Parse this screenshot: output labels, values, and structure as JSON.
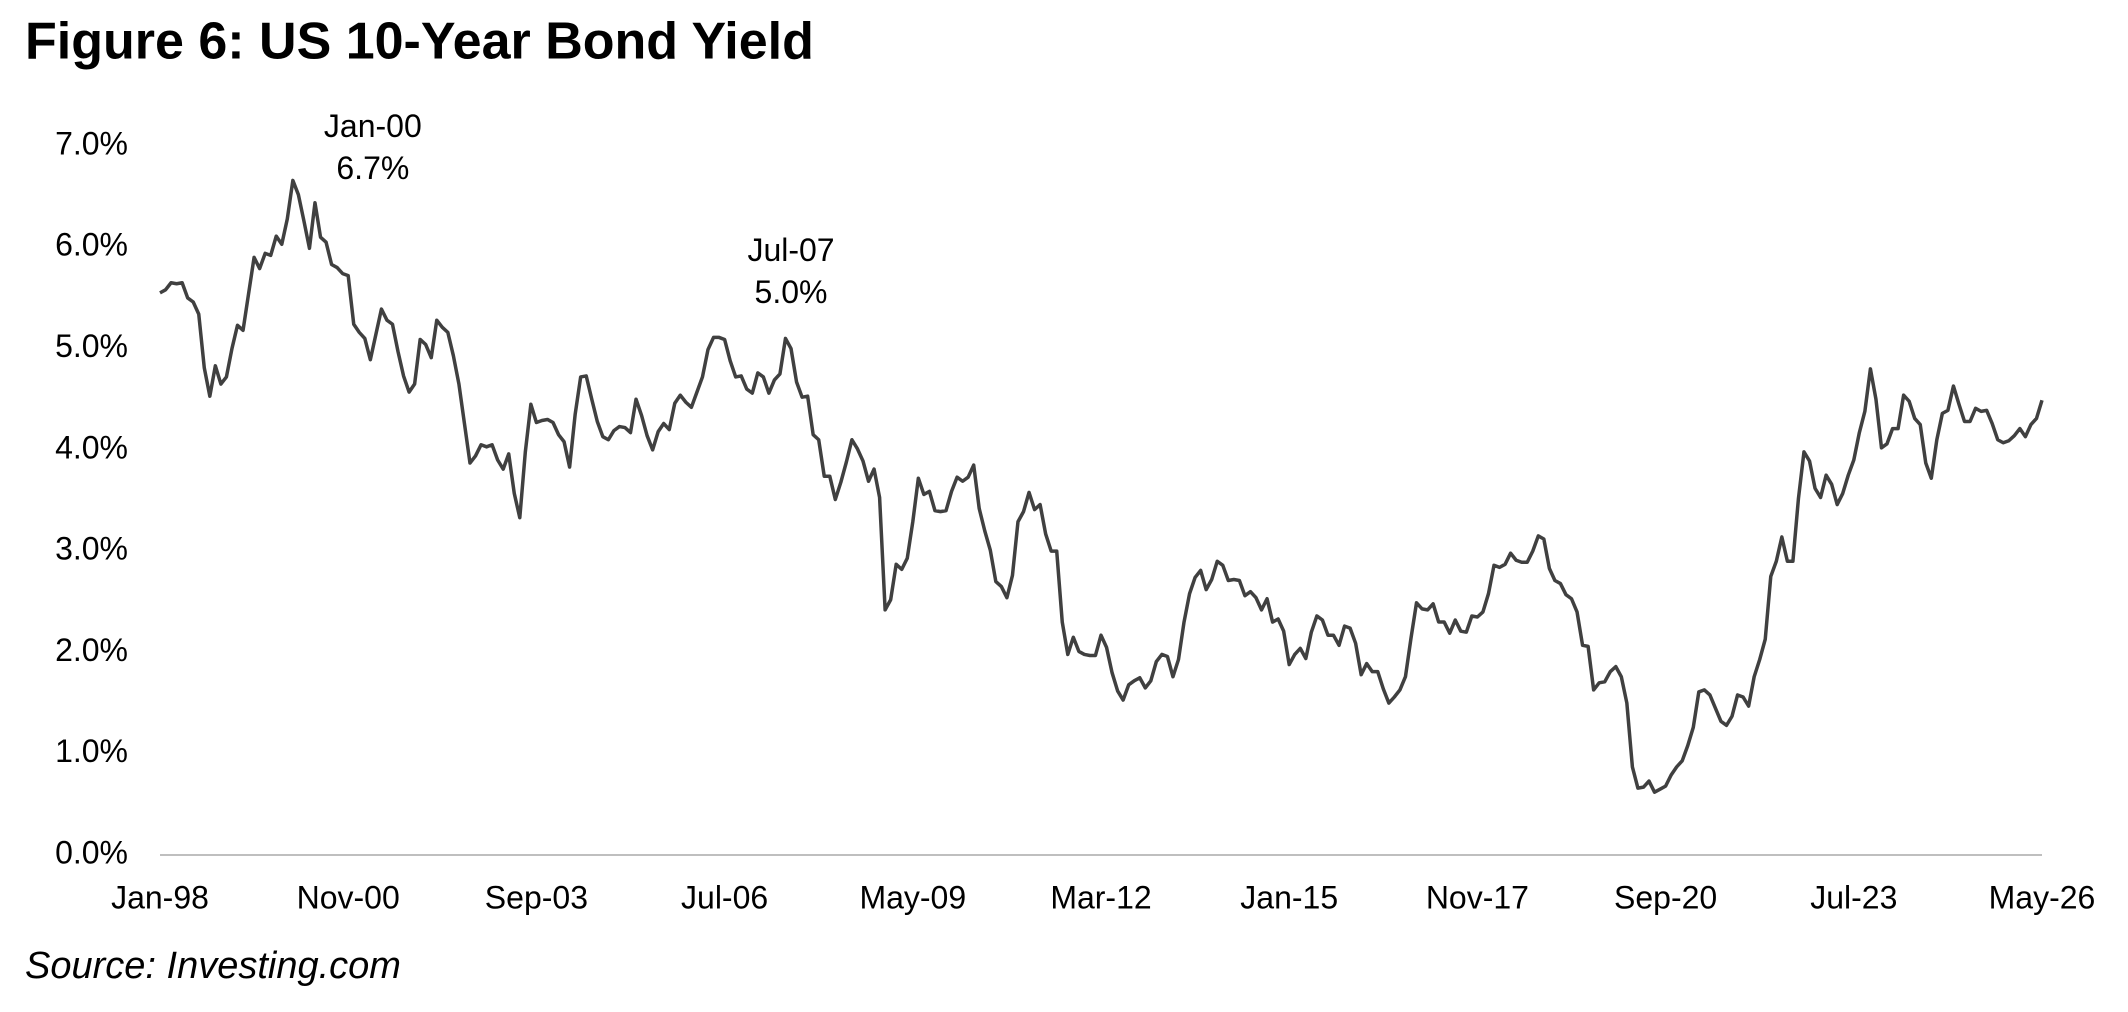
{
  "chart_data": {
    "type": "line",
    "title": "Figure 6: US 10-Year Bond Yield",
    "source": "Source: Investing.com",
    "categories": [
      "Jan-98",
      null,
      null,
      null,
      null,
      null,
      null,
      null,
      null,
      null,
      null,
      null,
      null,
      null,
      null,
      null,
      null,
      null,
      null,
      null,
      null,
      null,
      null,
      null,
      null,
      null,
      null,
      null,
      null,
      null,
      null,
      null,
      null,
      null,
      "Nov-00",
      null,
      null,
      null,
      null,
      null,
      null,
      null,
      null,
      null,
      null,
      null,
      null,
      null,
      null,
      null,
      null,
      null,
      null,
      null,
      null,
      null,
      null,
      null,
      null,
      null,
      null,
      null,
      null,
      null,
      null,
      null,
      null,
      null,
      "Sep-03",
      null,
      null,
      null,
      null,
      null,
      null,
      null,
      null,
      null,
      null,
      null,
      null,
      null,
      null,
      null,
      null,
      null,
      null,
      null,
      null,
      null,
      null,
      null,
      null,
      null,
      null,
      null,
      null,
      null,
      null,
      null,
      null,
      null,
      "Jul-06",
      null,
      null,
      null,
      null,
      null,
      null,
      null,
      null,
      null,
      null,
      null,
      null,
      null,
      null,
      null,
      null,
      null,
      null,
      null,
      null,
      null,
      null,
      null,
      null,
      null,
      null,
      null,
      null,
      null,
      null,
      null,
      null,
      null,
      "May-09",
      null,
      null,
      null,
      null,
      null,
      null,
      null,
      null,
      null,
      null,
      null,
      null,
      null,
      null,
      null,
      null,
      null,
      null,
      null,
      null,
      null,
      null,
      null,
      null,
      null,
      null,
      null,
      null,
      null,
      null,
      null,
      null,
      null,
      "Mar-12",
      null,
      null,
      null,
      null,
      null,
      null,
      null,
      null,
      null,
      null,
      null,
      null,
      null,
      null,
      null,
      null,
      null,
      null,
      null,
      null,
      null,
      null,
      null,
      null,
      null,
      null,
      null,
      null,
      null,
      null,
      null,
      null,
      null,
      "Jan-15",
      null,
      null,
      null,
      null,
      null,
      null,
      null,
      null,
      null,
      null,
      null,
      null,
      null,
      null,
      null,
      null,
      null,
      null,
      null,
      null,
      null,
      null,
      null,
      null,
      null,
      null,
      null,
      null,
      null,
      null,
      null,
      null,
      null,
      "Nov-17",
      null,
      null,
      null,
      null,
      null,
      null,
      null,
      null,
      null,
      null,
      null,
      null,
      null,
      null,
      null,
      null,
      null,
      null,
      null,
      null,
      null,
      null,
      null,
      null,
      null,
      null,
      null,
      null,
      null,
      null,
      null,
      null,
      null,
      "Sep-20",
      null,
      null,
      null,
      null,
      null,
      null,
      null,
      null,
      null,
      null,
      null,
      null,
      null,
      null,
      null,
      null,
      null,
      null,
      null,
      null,
      null,
      null,
      null,
      null,
      null,
      null,
      null,
      null,
      null,
      null,
      null,
      null,
      null,
      "Jul-23",
      null,
      null,
      null,
      null,
      null,
      null,
      null,
      null,
      null,
      null,
      null,
      null,
      null,
      null,
      null,
      null,
      null,
      null,
      null,
      null,
      null,
      null,
      null,
      null,
      null,
      null,
      null,
      null,
      null,
      null,
      null,
      null,
      null,
      "May-26"
    ],
    "series": [
      {
        "name": "US 10-Year Bond Yield",
        "color": "#404040",
        "values": [
          5.55,
          5.58,
          5.65,
          5.64,
          5.65,
          5.5,
          5.46,
          5.34,
          4.81,
          4.53,
          4.83,
          4.65,
          4.72,
          5.0,
          5.23,
          5.18,
          5.54,
          5.9,
          5.79,
          5.94,
          5.92,
          6.11,
          6.03,
          6.28,
          6.66,
          6.52,
          6.26,
          5.99,
          6.44,
          6.1,
          6.05,
          5.83,
          5.8,
          5.74,
          5.72,
          5.24,
          5.16,
          5.1,
          4.89,
          5.14,
          5.39,
          5.28,
          5.24,
          4.97,
          4.73,
          4.57,
          4.65,
          5.09,
          5.04,
          4.91,
          5.28,
          5.21,
          5.16,
          4.93,
          4.65,
          4.26,
          3.87,
          3.94,
          4.05,
          4.03,
          4.05,
          3.9,
          3.81,
          3.96,
          3.57,
          3.33,
          3.98,
          4.45,
          4.27,
          4.29,
          4.3,
          4.27,
          4.15,
          4.08,
          3.83,
          4.35,
          4.72,
          4.73,
          4.5,
          4.28,
          4.13,
          4.1,
          4.19,
          4.23,
          4.22,
          4.17,
          4.5,
          4.34,
          4.14,
          4.0,
          4.18,
          4.26,
          4.2,
          4.46,
          4.54,
          4.47,
          4.42,
          4.57,
          4.72,
          4.99,
          5.11,
          5.11,
          5.09,
          4.88,
          4.72,
          4.73,
          4.6,
          4.56,
          4.76,
          4.72,
          4.56,
          4.69,
          4.75,
          5.1,
          5.0,
          4.67,
          4.52,
          4.53,
          4.15,
          4.1,
          3.74,
          3.74,
          3.51,
          3.68,
          3.88,
          4.1,
          4.01,
          3.89,
          3.69,
          3.81,
          3.53,
          2.42,
          2.52,
          2.87,
          2.82,
          2.93,
          3.29,
          3.72,
          3.56,
          3.59,
          3.4,
          3.39,
          3.4,
          3.59,
          3.73,
          3.69,
          3.73,
          3.85,
          3.42,
          3.2,
          3.01,
          2.7,
          2.65,
          2.54,
          2.76,
          3.29,
          3.39,
          3.58,
          3.41,
          3.46,
          3.17,
          3.0,
          3.0,
          2.3,
          1.98,
          2.15,
          2.01,
          1.98,
          1.97,
          1.97,
          2.17,
          2.05,
          1.8,
          1.62,
          1.53,
          1.68,
          1.72,
          1.75,
          1.65,
          1.72,
          1.91,
          1.98,
          1.96,
          1.76,
          1.93,
          2.3,
          2.58,
          2.74,
          2.81,
          2.62,
          2.72,
          2.9,
          2.86,
          2.71,
          2.72,
          2.71,
          2.56,
          2.6,
          2.54,
          2.42,
          2.53,
          2.3,
          2.33,
          2.21,
          1.88,
          1.98,
          2.04,
          1.94,
          2.2,
          2.36,
          2.32,
          2.17,
          2.17,
          2.07,
          2.26,
          2.24,
          2.09,
          1.78,
          1.89,
          1.81,
          1.81,
          1.64,
          1.5,
          1.56,
          1.63,
          1.76,
          2.14,
          2.49,
          2.43,
          2.42,
          2.48,
          2.3,
          2.3,
          2.19,
          2.32,
          2.21,
          2.2,
          2.36,
          2.35,
          2.4,
          2.58,
          2.86,
          2.84,
          2.87,
          2.98,
          2.91,
          2.89,
          2.89,
          3.0,
          3.15,
          3.12,
          2.83,
          2.71,
          2.68,
          2.57,
          2.53,
          2.4,
          2.07,
          2.06,
          1.63,
          1.7,
          1.71,
          1.81,
          1.86,
          1.76,
          1.5,
          0.87,
          0.66,
          0.67,
          0.73,
          0.62,
          0.65,
          0.68,
          0.79,
          0.87,
          0.93,
          1.08,
          1.26,
          1.61,
          1.63,
          1.58,
          1.45,
          1.32,
          1.28,
          1.37,
          1.58,
          1.56,
          1.47,
          1.76,
          1.93,
          2.13,
          2.75,
          2.9,
          3.14,
          2.9,
          2.9,
          3.52,
          3.98,
          3.89,
          3.62,
          3.53,
          3.75,
          3.66,
          3.46,
          3.57,
          3.75,
          3.9,
          4.17,
          4.38,
          4.8,
          4.5,
          4.02,
          4.06,
          4.21,
          4.21,
          4.54,
          4.48,
          4.31,
          4.25,
          3.87,
          3.72,
          4.1,
          4.36,
          4.39,
          4.63,
          4.45,
          4.28,
          4.28,
          4.41,
          4.38,
          4.39,
          4.26,
          4.1,
          4.07,
          4.09,
          4.14,
          4.21,
          4.13,
          4.25,
          4.31,
          4.49
        ]
      }
    ],
    "ylim": [
      0,
      7
    ],
    "yticks": [
      {
        "value": 0,
        "label": "0.0%"
      },
      {
        "value": 1,
        "label": "1.0%"
      },
      {
        "value": 2,
        "label": "2.0%"
      },
      {
        "value": 3,
        "label": "3.0%"
      },
      {
        "value": 4,
        "label": "4.0%"
      },
      {
        "value": 5,
        "label": "5.0%"
      },
      {
        "value": 6,
        "label": "6.0%"
      },
      {
        "value": 7,
        "label": "7.0%"
      }
    ],
    "grid": false,
    "annotations": [
      {
        "date": "Jan-00",
        "value": 6.7,
        "label": "6.7%"
      },
      {
        "date": "Jul-07",
        "value": 5.0,
        "label": "5.0%"
      }
    ]
  }
}
